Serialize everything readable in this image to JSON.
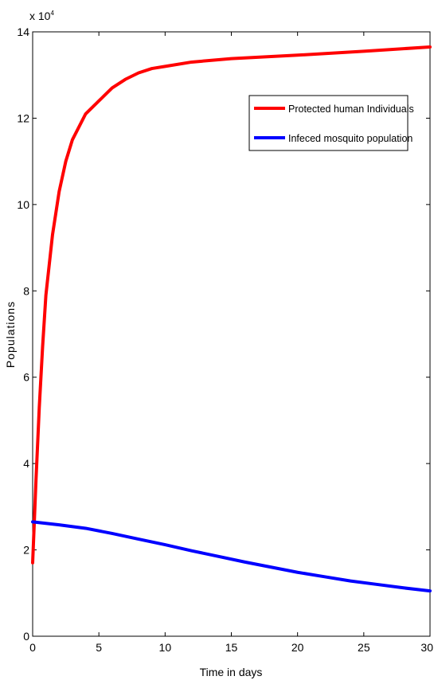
{
  "chart_data": {
    "type": "line",
    "title": "",
    "xlabel": "Time in days",
    "ylabel": "Populations",
    "y_multiplier_label": "x 10^4",
    "y_multiplier_base": "x 10",
    "y_multiplier_exp": "4",
    "xlim": [
      0,
      30
    ],
    "ylim": [
      0,
      14
    ],
    "xticks": [
      0,
      5,
      10,
      15,
      20,
      25,
      30
    ],
    "yticks": [
      0,
      2,
      4,
      6,
      8,
      10,
      12,
      14
    ],
    "grid": false,
    "legend_position": "top-right",
    "series": [
      {
        "name": "Protected human Individuals",
        "color": "#ff0000",
        "x": [
          0,
          0.25,
          0.5,
          0.75,
          1,
          1.5,
          2,
          2.5,
          3,
          4,
          5,
          6,
          7,
          8,
          9,
          10,
          12,
          15,
          20,
          25,
          30
        ],
        "y": [
          1.7,
          3.6,
          5.3,
          6.7,
          7.9,
          9.3,
          10.3,
          11.0,
          11.5,
          12.1,
          12.4,
          12.7,
          12.9,
          13.05,
          13.15,
          13.2,
          13.3,
          13.38,
          13.46,
          13.55,
          13.65
        ]
      },
      {
        "name": "Infeced mosquito population",
        "color": "#0000ff",
        "x": [
          0,
          2,
          4,
          6,
          8,
          10,
          12,
          14,
          16,
          18,
          20,
          22,
          24,
          26,
          28,
          30
        ],
        "y": [
          2.65,
          2.58,
          2.5,
          2.38,
          2.25,
          2.12,
          1.98,
          1.85,
          1.72,
          1.6,
          1.48,
          1.38,
          1.28,
          1.2,
          1.12,
          1.05
        ]
      }
    ]
  }
}
